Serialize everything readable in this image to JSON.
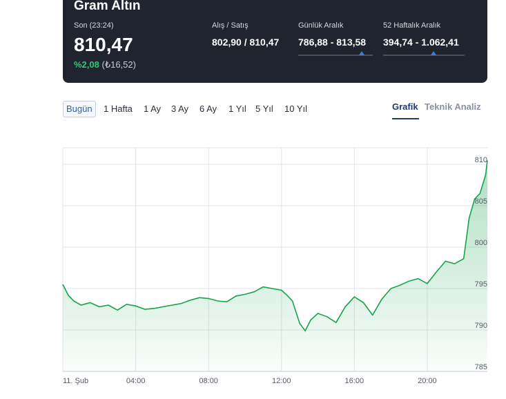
{
  "header": {
    "title": "Gram Altın",
    "last_label": "Son (23:24)",
    "last_value": "810,47",
    "change_pct": "%2,08",
    "change_abs": "(₺16,52)",
    "bidask_label": "Alış / Satış",
    "bidask_value": "802,90 / 810,47",
    "daily_label": "Günlük Aralık",
    "daily_value": "786,88 - 813,58",
    "daily_marker": 0.85,
    "weekly_label": "52 Haftalık Aralık",
    "weekly_value": "394,74 - 1.062,41",
    "weekly_marker": 0.62
  },
  "periods": [
    "Bugün",
    "1 Hafta",
    "1 Ay",
    "3 Ay",
    "6 Ay",
    "1 Yıl",
    "5 Yıl",
    "10 Yıl"
  ],
  "view_tabs": {
    "chart": "Grafik",
    "technical": "Teknik Analiz"
  },
  "colors": {
    "header_bg": "#20242e",
    "line": "#16a34a",
    "positive": "#2ecc71",
    "accent": "#2f80ed"
  },
  "chart_data": {
    "type": "area",
    "ylim": [
      785,
      812
    ],
    "y_ticks": [
      785,
      790,
      795,
      800,
      805,
      810
    ],
    "y_tick_labels": [
      "785",
      "790",
      "795",
      "800",
      "805",
      "810"
    ],
    "x_ticks": [
      0,
      4,
      8,
      12,
      16,
      20
    ],
    "x_tick_labels": [
      "11. Şub",
      "04:00",
      "08:00",
      "12:00",
      "16:00",
      "20:00"
    ],
    "xlim": [
      0,
      23.3
    ],
    "grid": true,
    "series": [
      {
        "x": [
          0,
          0.3,
          0.6,
          1,
          1.5,
          2,
          2.5,
          3,
          3.5,
          4,
          4.5,
          5,
          5.5,
          6,
          6.5,
          7,
          7.5,
          8,
          8.5,
          9,
          9.5,
          10,
          10.5,
          11,
          11.5,
          12,
          12.3,
          12.6,
          13,
          13.3,
          13.6,
          14,
          14.5,
          15,
          15.5,
          16,
          16.5,
          17,
          17.5,
          18,
          18.5,
          19,
          19.5,
          20,
          20.5,
          21,
          21.5,
          22,
          22.3,
          22.6,
          22.9,
          23.2,
          23.3
        ],
        "values": [
          795.5,
          794.2,
          793.5,
          793.0,
          793.3,
          792.8,
          793.0,
          792.4,
          793.1,
          792.9,
          792.5,
          792.6,
          792.8,
          793.0,
          793.2,
          793.6,
          793.9,
          793.8,
          793.5,
          793.4,
          794.1,
          794.3,
          794.6,
          795.2,
          795.0,
          794.8,
          794.2,
          793.5,
          790.8,
          789.9,
          791.2,
          792.0,
          791.6,
          790.9,
          792.8,
          794.0,
          793.3,
          791.8,
          793.7,
          795.0,
          795.4,
          795.9,
          796.2,
          795.6,
          797.0,
          798.3,
          798.0,
          798.6,
          803.5,
          805.8,
          806.5,
          808.7,
          810.47
        ]
      }
    ]
  }
}
